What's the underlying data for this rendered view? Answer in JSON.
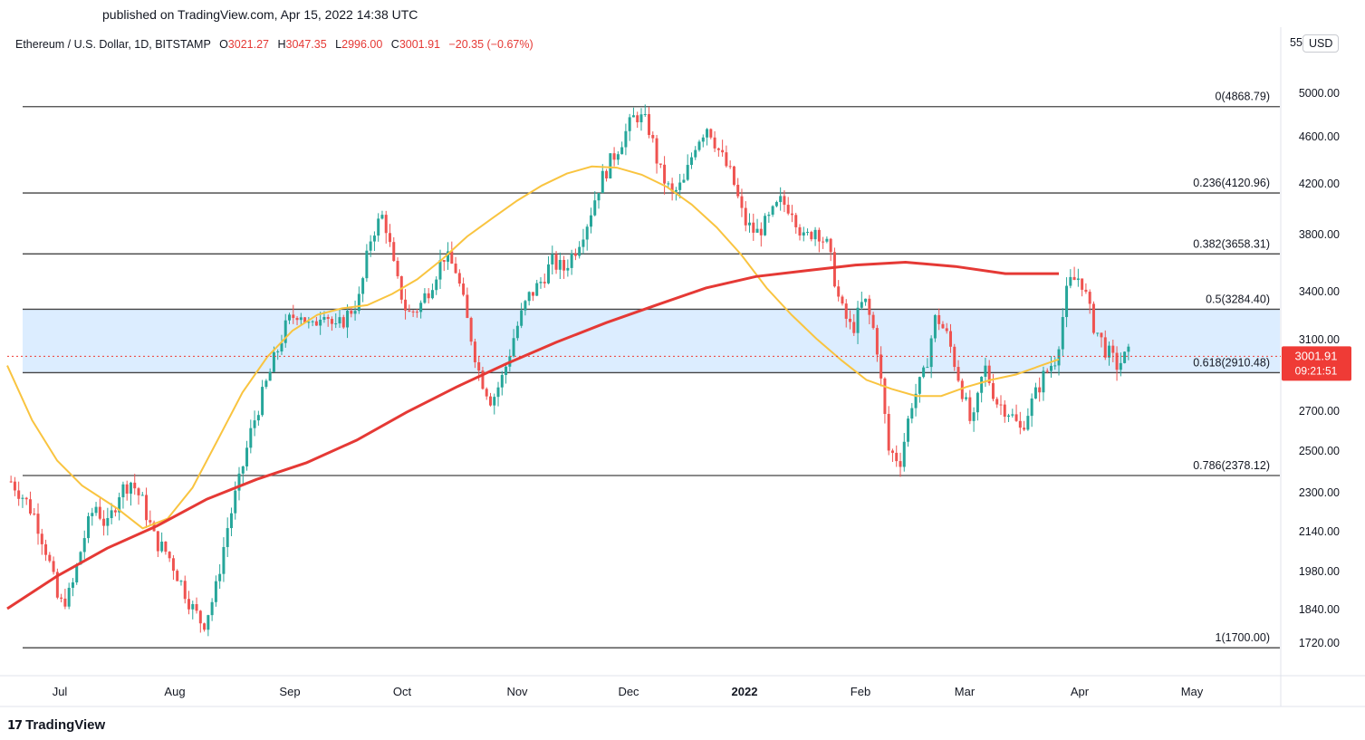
{
  "published": "published on TradingView.com, Apr 15, 2022 14:38 UTC",
  "legend": {
    "symbol": "Ethereum / U.S. Dollar, 1D, BITSTAMP",
    "o_label": "O",
    "o_value": "3021.27",
    "h_label": "H",
    "h_value": "3047.35",
    "l_label": "L",
    "l_value": "2996.00",
    "c_label": "C",
    "c_value": "3001.91",
    "change": "−20.35 (−0.67%)"
  },
  "currency_prefix": "55",
  "currency": "USD",
  "footer": "TradingView",
  "colors": {
    "up": "#26a69a",
    "down": "#ef5350",
    "ma_short": "#f9c440",
    "ma_long": "#e53935",
    "fib_zone": "#d6eaff",
    "fib_line": "#444444",
    "price_tag": "#ef3b36"
  },
  "chart_data": {
    "type": "candlestick",
    "x_range": [
      "2022-06-24",
      "2022-05-31"
    ],
    "ylim": [
      1620,
      5100
    ],
    "y_ticks": [
      "5000.00",
      "4600.00",
      "4200.00",
      "3800.00",
      "3400.00",
      "3100.00",
      "2700.00",
      "2500.00",
      "2300.00",
      "2140.00",
      "1980.00",
      "1840.00",
      "1720.00"
    ],
    "y_tick_values": [
      5000,
      4600,
      4200,
      3800,
      3400,
      3100,
      2700,
      2500,
      2300,
      2140,
      1980,
      1840,
      1720
    ],
    "x_ticks": [
      "Jul",
      "Aug",
      "Sep",
      "Oct",
      "Nov",
      "Dec",
      "2022",
      "Feb",
      "Mar",
      "Apr",
      "May"
    ],
    "fib_levels": [
      {
        "label": "0(4868.79)",
        "value": 4868.79
      },
      {
        "label": "0.236(4120.96)",
        "value": 4120.96
      },
      {
        "label": "0.382(3658.31)",
        "value": 3658.31
      },
      {
        "label": "0.5(3284.40)",
        "value": 3284.4
      },
      {
        "label": "0.618(2910.48)",
        "value": 2910.48
      },
      {
        "label": "0.786(2378.12)",
        "value": 2378.12
      },
      {
        "label": "1(1700.00)",
        "value": 1700.0
      }
    ],
    "highlight_zone": [
      2910.48,
      3284.4
    ],
    "last_price": "3001.91",
    "countdown": "09:21:51",
    "price_path": [
      2350,
      2280,
      2200,
      2050,
      1850,
      1900,
      2100,
      2250,
      2150,
      2300,
      2350,
      2250,
      2100,
      2050,
      1950,
      1850,
      1780,
      1900,
      2150,
      2350,
      2600,
      2800,
      3000,
      3200,
      3280,
      3150,
      3300,
      3150,
      3250,
      3350,
      3800,
      3950,
      3500,
      3250,
      3300,
      3450,
      3650,
      3550,
      3200,
      2900,
      2750,
      2900,
      3150,
      3350,
      3450,
      3600,
      3550,
      3700,
      3900,
      4200,
      4400,
      4600,
      4800,
      4700,
      4300,
      4100,
      4200,
      4550,
      4700,
      4450,
      4250,
      3900,
      3800,
      3900,
      4050,
      4000,
      3750,
      3850,
      3700,
      3300,
      3150,
      3350,
      3100,
      2500,
      2450,
      2750,
      2900,
      3250,
      3100,
      2850,
      2600,
      2950,
      2750,
      2700,
      2600,
      2750,
      2900,
      3000,
      3450,
      3500,
      3200,
      3050,
      2950,
      3010
    ],
    "ma_short": [
      [
        "2022-06-24",
        2950
      ],
      [
        "2022-07-01",
        2650
      ],
      [
        "2022-07-08",
        2450
      ],
      [
        "2022-07-15",
        2330
      ],
      [
        "2022-07-25",
        2230
      ],
      [
        "2022-08-01",
        2150
      ],
      [
        "2022-08-08",
        2190
      ],
      [
        "2022-08-15",
        2320
      ],
      [
        "2022-08-22",
        2550
      ],
      [
        "2022-08-29",
        2800
      ],
      [
        "2022-09-05",
        3000
      ],
      [
        "2022-09-12",
        3150
      ],
      [
        "2022-09-19",
        3250
      ],
      [
        "2022-09-26",
        3290
      ],
      [
        "2022-10-03",
        3310
      ],
      [
        "2022-10-10",
        3380
      ],
      [
        "2022-10-17",
        3480
      ],
      [
        "2022-10-24",
        3620
      ],
      [
        "2022-10-31",
        3780
      ],
      [
        "2022-11-07",
        3920
      ],
      [
        "2022-11-14",
        4060
      ],
      [
        "2022-11-21",
        4180
      ],
      [
        "2022-11-28",
        4280
      ],
      [
        "2022-12-05",
        4340
      ],
      [
        "2022-12-12",
        4330
      ],
      [
        "2022-12-19",
        4270
      ],
      [
        "2022-12-26",
        4170
      ],
      [
        "2023-01-02",
        4030
      ],
      [
        "2023-01-09",
        3850
      ],
      [
        "2023-01-16",
        3650
      ],
      [
        "2023-01-23",
        3420
      ],
      [
        "2023-01-30",
        3250
      ],
      [
        "2023-02-06",
        3100
      ],
      [
        "2023-02-13",
        2980
      ],
      [
        "2023-02-20",
        2870
      ],
      [
        "2023-02-27",
        2820
      ],
      [
        "2023-03-06",
        2780
      ],
      [
        "2023-03-13",
        2780
      ],
      [
        "2023-03-20",
        2830
      ],
      [
        "2023-03-27",
        2870
      ],
      [
        "2023-04-03",
        2900
      ],
      [
        "2023-04-10",
        2950
      ],
      [
        "2023-04-15",
        2985
      ]
    ],
    "ma_long": [
      [
        "2022-06-24",
        1840
      ],
      [
        "2022-07-08",
        1960
      ],
      [
        "2022-07-22",
        2070
      ],
      [
        "2022-08-05",
        2160
      ],
      [
        "2022-08-19",
        2270
      ],
      [
        "2022-09-02",
        2360
      ],
      [
        "2022-09-16",
        2440
      ],
      [
        "2022-09-30",
        2550
      ],
      [
        "2022-10-14",
        2690
      ],
      [
        "2022-10-28",
        2830
      ],
      [
        "2022-11-11",
        2960
      ],
      [
        "2022-11-25",
        3080
      ],
      [
        "2022-12-09",
        3200
      ],
      [
        "2022-12-23",
        3310
      ],
      [
        "2023-01-06",
        3420
      ],
      [
        "2023-01-20",
        3500
      ],
      [
        "2023-02-03",
        3540
      ],
      [
        "2023-02-17",
        3580
      ],
      [
        "2023-03-03",
        3600
      ],
      [
        "2023-03-17",
        3570
      ],
      [
        "2023-03-31",
        3520
      ],
      [
        "2023-04-15",
        3520
      ]
    ]
  }
}
